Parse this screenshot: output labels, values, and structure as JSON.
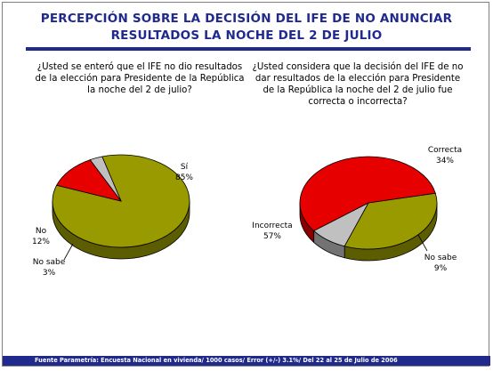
{
  "title_line1": "PERCEPCIÓN SOBRE LA DECISIÓN DEL IFE DE NO ANUNCIAR",
  "title_line2": "RESULTADOS LA NOCHE DEL 2 DE JULIO",
  "footer": "Fuente Parametría: Encuesta Nacional en vivienda/ 1000 casos/ Error (+/-) 3.1%/ Del 22 al 25 de Julio de 2006",
  "colors": {
    "title": "#1f2a8c",
    "olive": "#999900",
    "red": "#e60000",
    "grey": "#c0c0c0"
  },
  "chart_data": [
    {
      "type": "pie",
      "question": "¿Usted se enteró que el IFE no dio resultados de la elección para Presidente de la República la noche del 2 de julio?",
      "slices": [
        {
          "label": "Sí",
          "value": 85,
          "value_text": "85%",
          "color": "#999900"
        },
        {
          "label": "No",
          "value": 12,
          "value_text": "12%",
          "color": "#e60000"
        },
        {
          "label": "No sabe",
          "value": 3,
          "value_text": "3%",
          "color": "#c0c0c0"
        }
      ]
    },
    {
      "type": "pie",
      "question": "¿Usted considera que la decisión del IFE de no dar resultados de la elección para Presidente de la República la noche del 2 de julio fue correcta o incorrecta?",
      "slices": [
        {
          "label": "Correcta",
          "value": 34,
          "value_text": "34%",
          "color": "#999900"
        },
        {
          "label": "No sabe",
          "value": 9,
          "value_text": "9%",
          "color": "#c0c0c0"
        },
        {
          "label": "Incorrecta",
          "value": 57,
          "value_text": "57%",
          "color": "#e60000"
        }
      ]
    }
  ]
}
